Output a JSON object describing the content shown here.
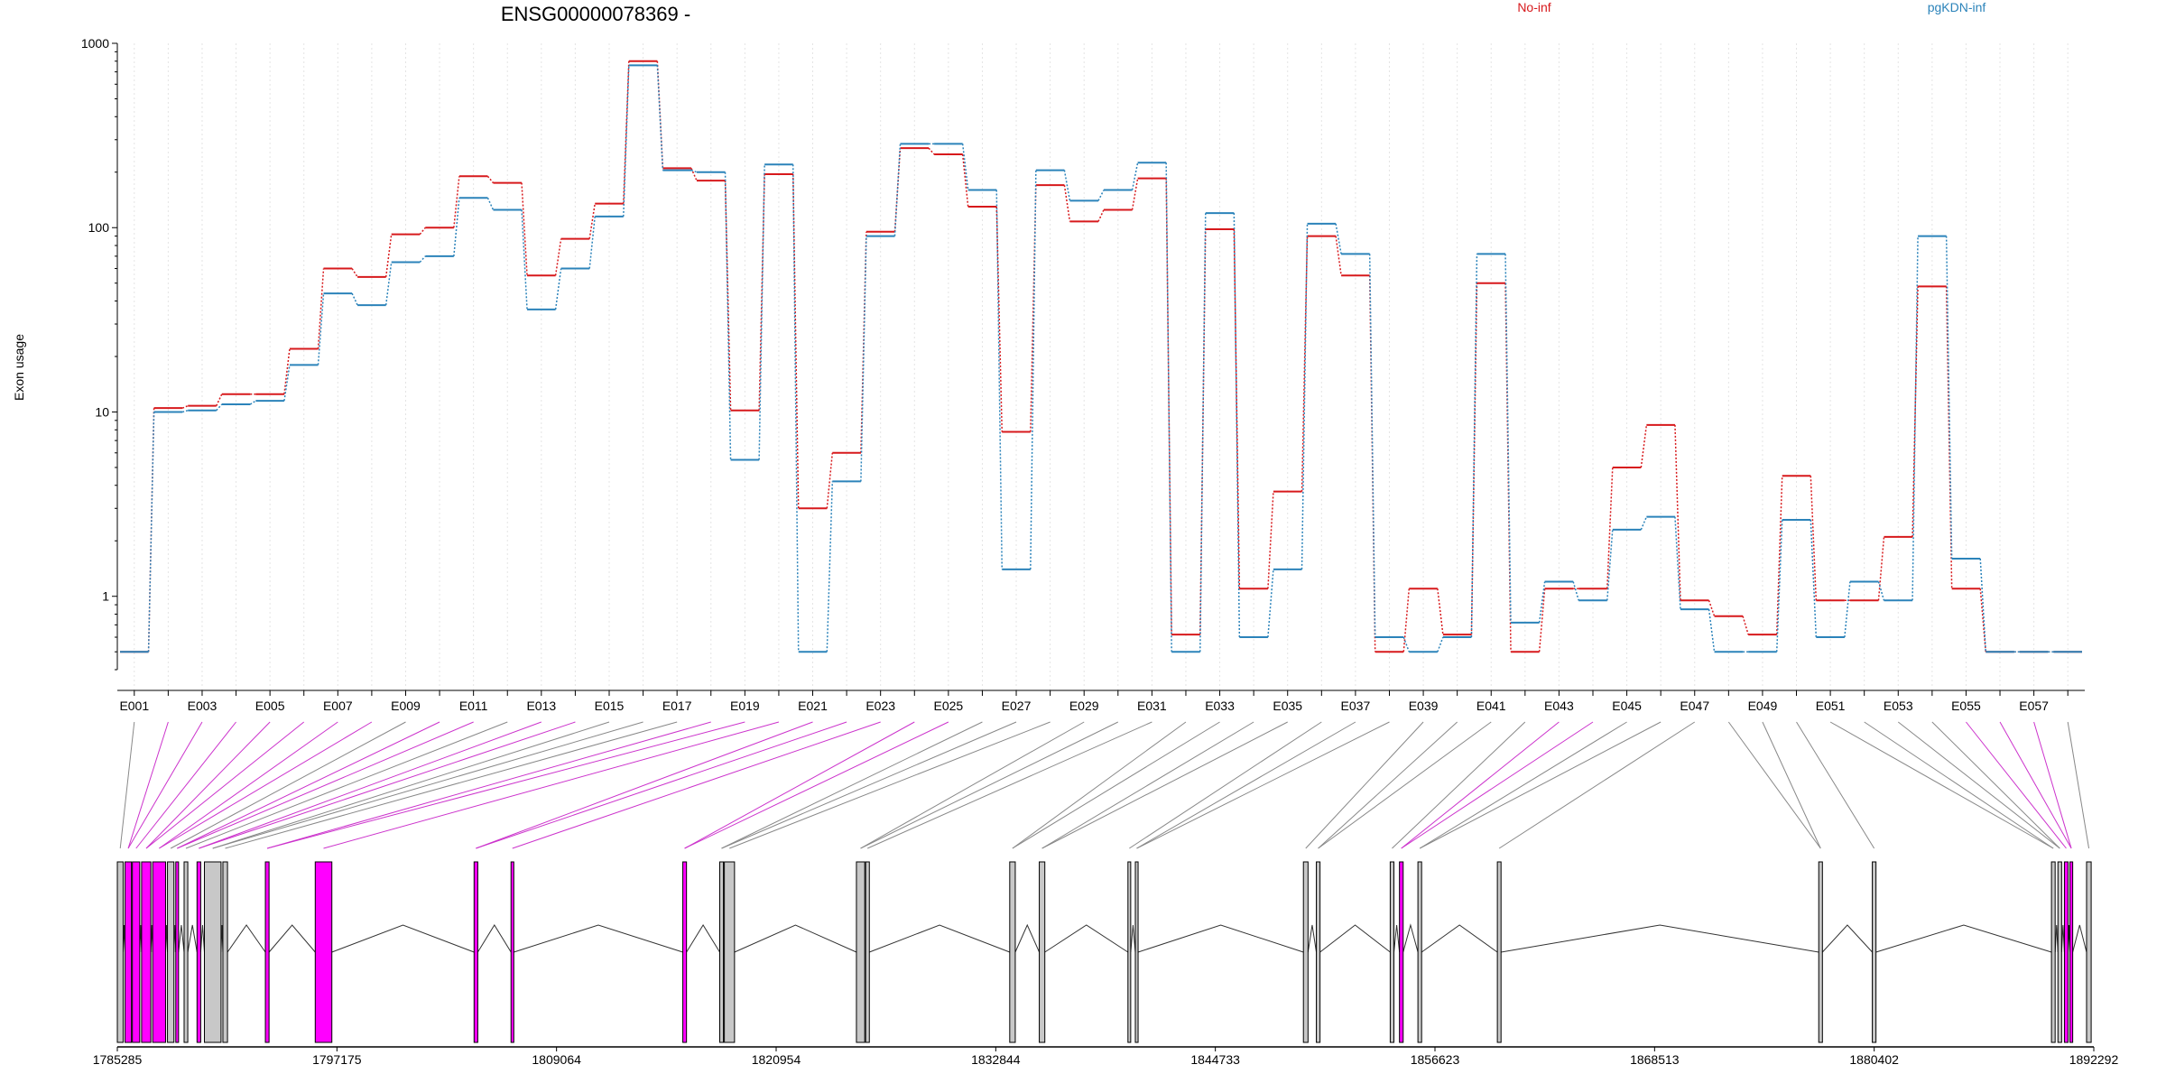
{
  "chart_data": {
    "type": "line",
    "title": "ENSG00000078369 -",
    "ylabel": "Exon usage",
    "xlabel": "",
    "yscale": "log",
    "ylim": [
      0.4,
      1000
    ],
    "yticks": [
      "1",
      "10",
      "100",
      "1000"
    ],
    "ytick_values": [
      1,
      10,
      100,
      1000
    ],
    "grid": "vertical dotted lines at each exon",
    "legend_placement": "top",
    "categories": [
      "E001",
      "E002",
      "E003",
      "E004",
      "E005",
      "E006",
      "E007",
      "E008",
      "E009",
      "E010",
      "E011",
      "E012",
      "E013",
      "E014",
      "E015",
      "E016",
      "E017",
      "E018",
      "E019",
      "E020",
      "E021",
      "E022",
      "E023",
      "E024",
      "E025",
      "E026",
      "E027",
      "E028",
      "E029",
      "E030",
      "E031",
      "E032",
      "E033",
      "E034",
      "E035",
      "E036",
      "E037",
      "E038",
      "E039",
      "E040",
      "E041",
      "E042",
      "E043",
      "E044",
      "E045",
      "E046",
      "E047",
      "E048",
      "E049",
      "E050",
      "E051",
      "E052",
      "E053",
      "E054",
      "E055",
      "E056",
      "E057",
      "E058"
    ],
    "xtick_labels": [
      "E001",
      "E003",
      "E005",
      "E007",
      "E009",
      "E011",
      "E013",
      "E015",
      "E017",
      "E019",
      "E021",
      "E023",
      "E025",
      "E027",
      "E029",
      "E031",
      "E033",
      "E035",
      "E037",
      "E039",
      "E041",
      "E043",
      "E045",
      "E047",
      "E049",
      "E051",
      "E053",
      "E055",
      "E057"
    ],
    "series": [
      {
        "name": "No-inf",
        "color": "#d7191c",
        "values": [
          0.5,
          10.5,
          10.8,
          12.5,
          12.5,
          22,
          60,
          54,
          92,
          100,
          190,
          175,
          55,
          87,
          135,
          800,
          210,
          180,
          10.2,
          195,
          3,
          6,
          95,
          270,
          250,
          130,
          7.8,
          170,
          108,
          125,
          185,
          0.62,
          98,
          1.1,
          3.7,
          90,
          55,
          0.5,
          1.1,
          0.62,
          50,
          0.5,
          1.1,
          1.1,
          5,
          8.5,
          0.95,
          0.78,
          0.62,
          4.5,
          0.95,
          0.95,
          2.1,
          48,
          1.1,
          0.5,
          0.5,
          0.5
        ]
      },
      {
        "name": "pgKDN-inf",
        "color": "#2b83ba",
        "values": [
          0.5,
          10,
          10.2,
          11,
          11.5,
          18,
          44,
          38,
          65,
          70,
          145,
          125,
          36,
          60,
          115,
          760,
          205,
          200,
          5.5,
          220,
          0.5,
          4.2,
          90,
          285,
          285,
          160,
          1.4,
          205,
          140,
          160,
          225,
          0.5,
          120,
          0.6,
          1.4,
          105,
          72,
          0.6,
          0.5,
          0.6,
          72,
          0.72,
          1.2,
          0.95,
          2.3,
          2.7,
          0.85,
          0.5,
          0.5,
          2.6,
          0.6,
          1.2,
          0.95,
          90,
          1.6,
          0.5,
          0.5,
          0.5
        ]
      }
    ],
    "gene_model": {
      "coordinate_ticks": [
        "1785285",
        "1797175",
        "1809064",
        "1820954",
        "1832844",
        "1844733",
        "1856623",
        "1868513",
        "1880402",
        "1892292"
      ],
      "coordinate_range": [
        1785285,
        1892292
      ],
      "exon_color_normal": "#c8c8c8",
      "exon_color_highlight": "#ff00ff",
      "exons": [
        {
          "start": 1785285,
          "end": 1785600,
          "highlight": false
        },
        {
          "start": 1785700,
          "end": 1786050,
          "highlight": true
        },
        {
          "start": 1786100,
          "end": 1786500,
          "highlight": true
        },
        {
          "start": 1786600,
          "end": 1787100,
          "highlight": true
        },
        {
          "start": 1787200,
          "end": 1787900,
          "highlight": true
        },
        {
          "start": 1788000,
          "end": 1788350,
          "highlight": false
        },
        {
          "start": 1788450,
          "end": 1788600,
          "highlight": true
        },
        {
          "start": 1788900,
          "end": 1789100,
          "highlight": false
        },
        {
          "start": 1789600,
          "end": 1789800,
          "highlight": true
        },
        {
          "start": 1790000,
          "end": 1790900,
          "highlight": false
        },
        {
          "start": 1791000,
          "end": 1791250,
          "highlight": false
        },
        {
          "start": 1793300,
          "end": 1793500,
          "highlight": true
        },
        {
          "start": 1796000,
          "end": 1796900,
          "highlight": true
        },
        {
          "start": 1804600,
          "end": 1804800,
          "highlight": true
        },
        {
          "start": 1806600,
          "end": 1806750,
          "highlight": true
        },
        {
          "start": 1815900,
          "end": 1816100,
          "highlight": true
        },
        {
          "start": 1817900,
          "end": 1818100,
          "highlight": false
        },
        {
          "start": 1818150,
          "end": 1818700,
          "highlight": false
        },
        {
          "start": 1825300,
          "end": 1825750,
          "highlight": false
        },
        {
          "start": 1825800,
          "end": 1826000,
          "highlight": false
        },
        {
          "start": 1833600,
          "end": 1833900,
          "highlight": false
        },
        {
          "start": 1835200,
          "end": 1835500,
          "highlight": false
        },
        {
          "start": 1840000,
          "end": 1840150,
          "highlight": false
        },
        {
          "start": 1840400,
          "end": 1840550,
          "highlight": false
        },
        {
          "start": 1849500,
          "end": 1849750,
          "highlight": false
        },
        {
          "start": 1850200,
          "end": 1850400,
          "highlight": false
        },
        {
          "start": 1854200,
          "end": 1854400,
          "highlight": false
        },
        {
          "start": 1854700,
          "end": 1854900,
          "highlight": true
        },
        {
          "start": 1855700,
          "end": 1855900,
          "highlight": false
        },
        {
          "start": 1860000,
          "end": 1860200,
          "highlight": false
        },
        {
          "start": 1877400,
          "end": 1877600,
          "highlight": false
        },
        {
          "start": 1880300,
          "end": 1880500,
          "highlight": false
        },
        {
          "start": 1890000,
          "end": 1890200,
          "highlight": false
        },
        {
          "start": 1890350,
          "end": 1890550,
          "highlight": false
        },
        {
          "start": 1890700,
          "end": 1890900,
          "highlight": true
        },
        {
          "start": 1891000,
          "end": 1891150,
          "highlight": true
        },
        {
          "start": 1891900,
          "end": 1892150,
          "highlight": false
        }
      ]
    }
  }
}
